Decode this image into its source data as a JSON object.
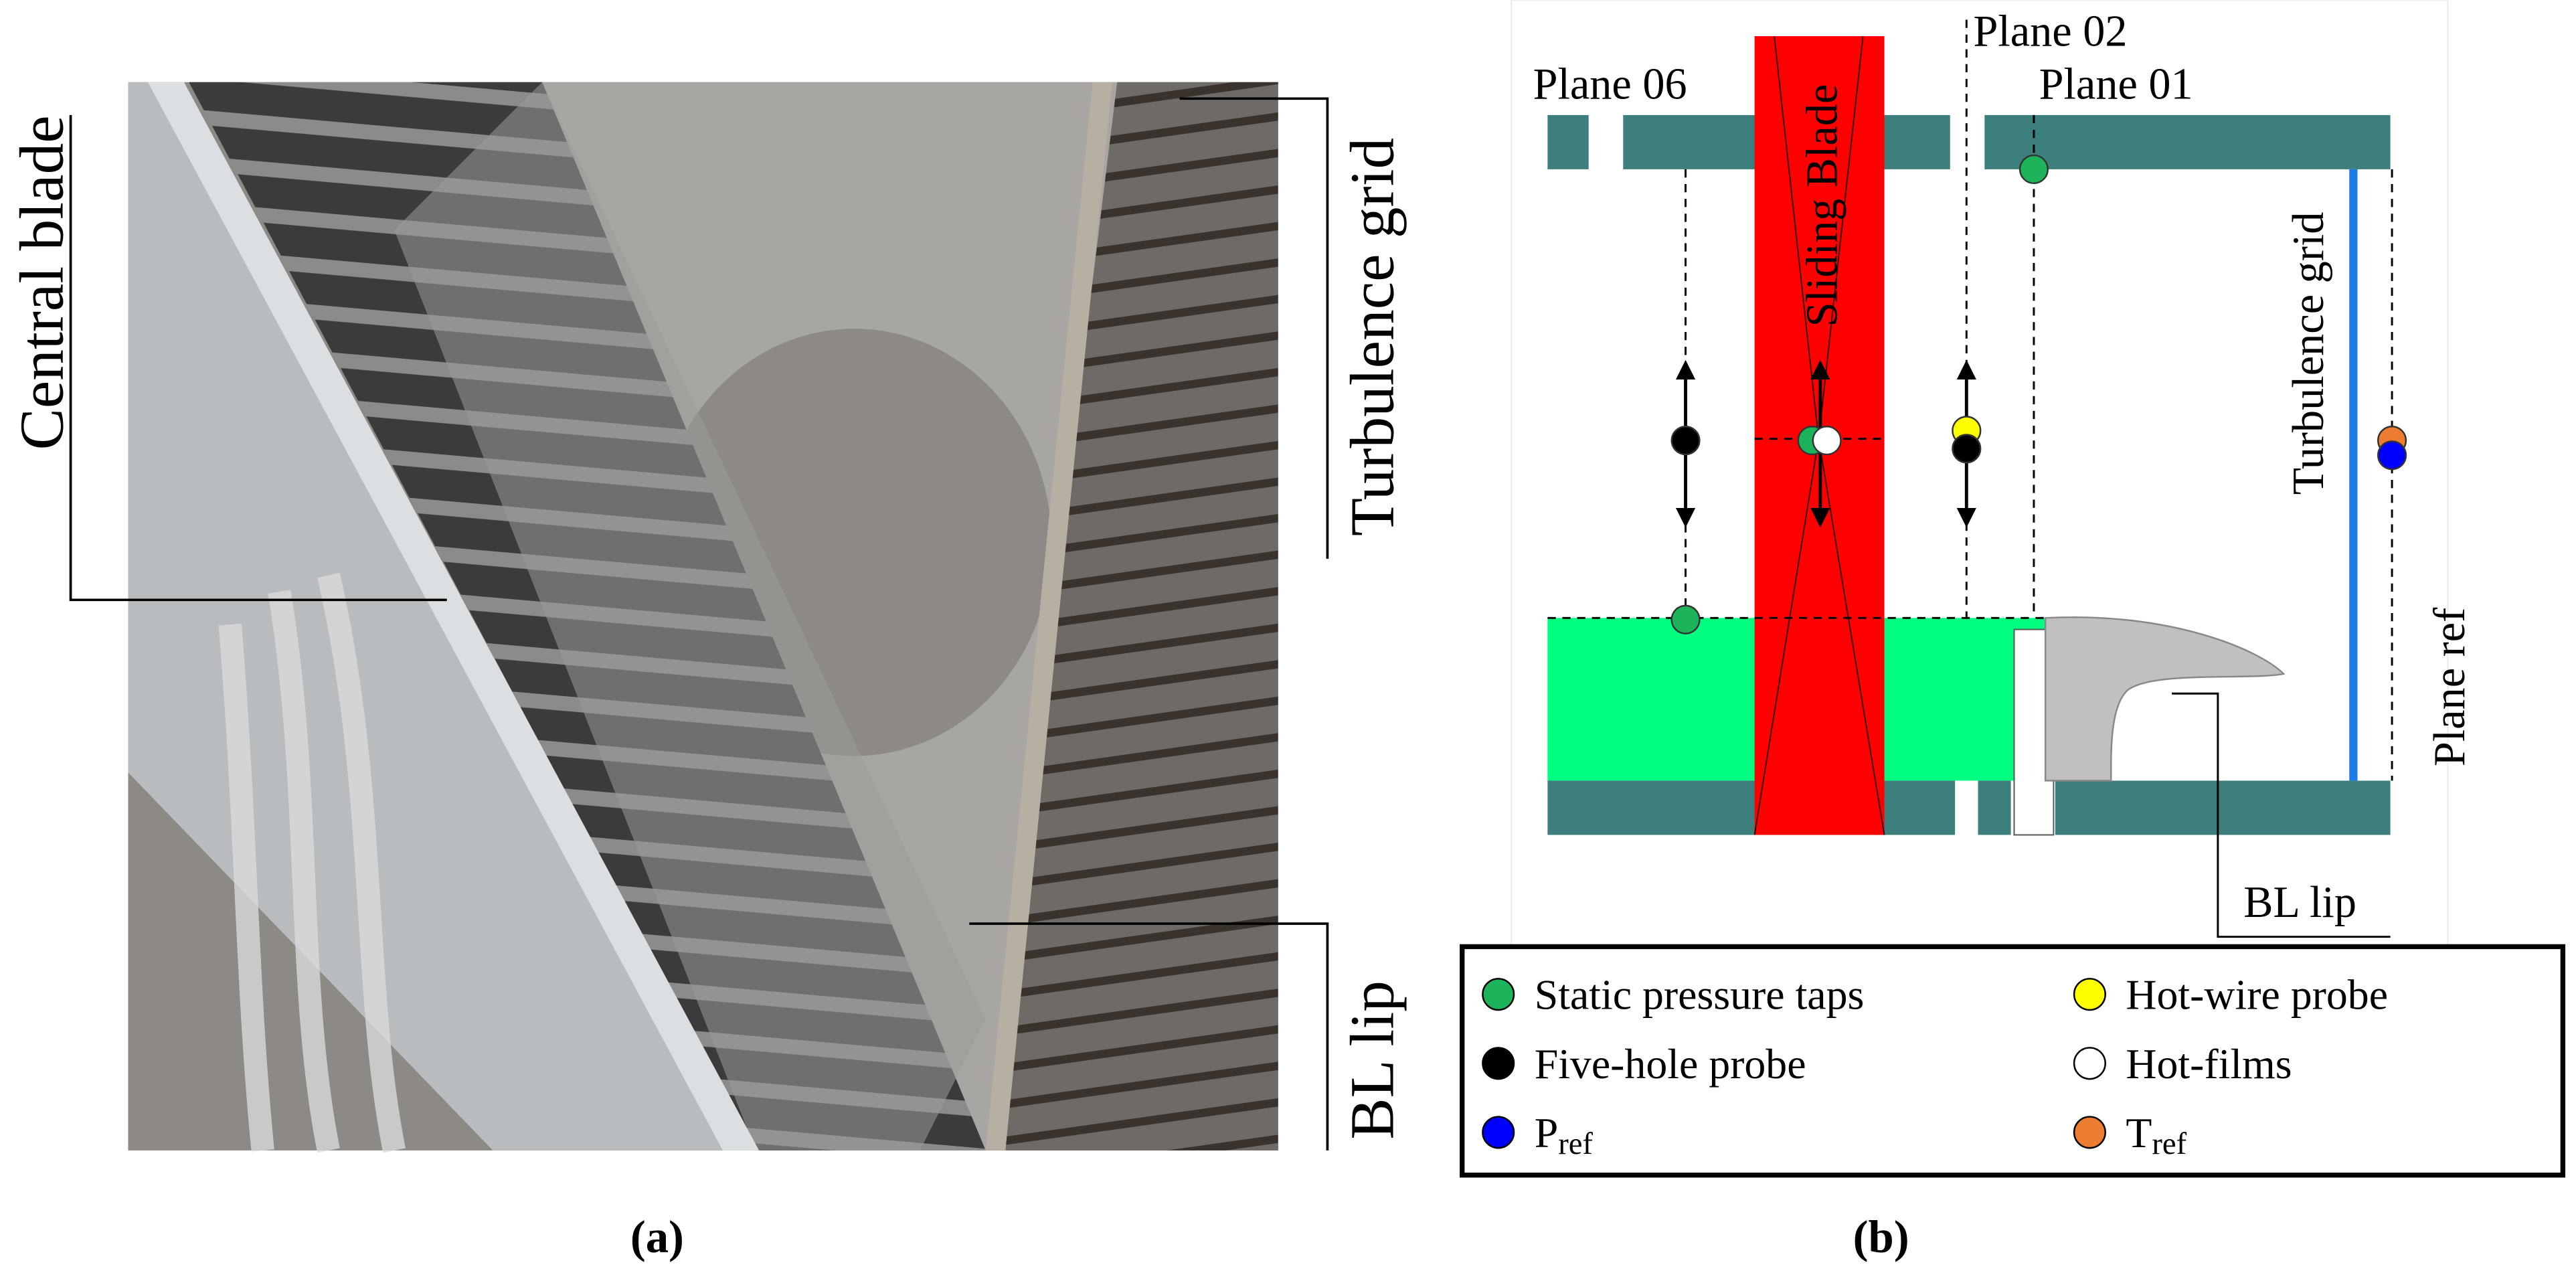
{
  "panel_a": {
    "labels": {
      "central_blade": "Central blade",
      "turbulence_grid": "Turbulence grid",
      "bl_lip": "BL lip"
    },
    "caption": "(a)"
  },
  "panel_b": {
    "labels": {
      "plane_06": "Plane 06",
      "plane_02": "Plane 02",
      "plane_01": "Plane 01",
      "sliding_blade": "Sliding Blade",
      "turbulence_grid": "Turbulence grid",
      "plane_ref": "Plane ref",
      "bl_lip": "BL lip"
    },
    "legend": [
      {
        "label": "Static pressure taps",
        "color": "#1db35a"
      },
      {
        "label": "Hot-wire probe",
        "color": "#ffff00"
      },
      {
        "label": "Five-hole probe",
        "color": "#000000"
      },
      {
        "label": "Hot-films",
        "color": "#ffffff"
      },
      {
        "label": "P",
        "subscript": "ref",
        "color": "#0000ff"
      },
      {
        "label": "T",
        "subscript": "ref",
        "color": "#ed7d31"
      }
    ],
    "caption": "(b)"
  }
}
